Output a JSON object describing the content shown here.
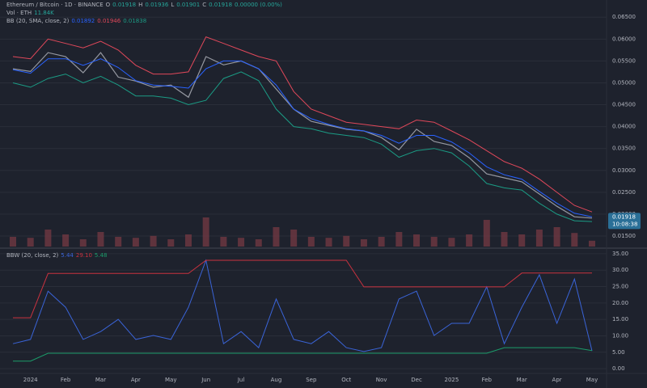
{
  "chart_data": [
    {
      "type": "line",
      "symbol": [
        "Ethereum / Bitcoin · 1D · BINANCE",
        "O",
        "0.01918",
        "H",
        "0.01936",
        "L",
        "0.01901",
        "C",
        "0.01918",
        "0.00000 (0.00%)"
      ],
      "volume_label": "Vol · ETH",
      "volume_last": "11.84K",
      "indicator_label": "BB (20, SMA, close, 2)",
      "indicator_values": [
        "0.01892",
        "0.01946",
        "0.01838"
      ],
      "categories": [
        null,
        "2024",
        null,
        "Feb",
        null,
        "Mar",
        null,
        "Apr",
        null,
        "May",
        null,
        "Jun",
        null,
        "Jul",
        null,
        "Aug",
        null,
        "Sep",
        null,
        "Oct",
        null,
        "Nov",
        null,
        "Dec",
        null,
        "2025",
        null,
        "Feb",
        null,
        "Mar",
        null,
        "Apr",
        null,
        "May"
      ],
      "series": [
        {
          "color": "#9598a1",
          "values": [
            0.0532,
            0.0526,
            0.0569,
            0.056,
            0.0523,
            0.0569,
            0.0513,
            0.0504,
            0.049,
            0.0495,
            0.0467,
            0.056,
            0.0541,
            0.055,
            0.0532,
            0.0486,
            0.044,
            0.0412,
            0.0403,
            0.0394,
            0.039,
            0.0375,
            0.0347,
            0.0394,
            0.0366,
            0.0357,
            0.0329,
            0.0292,
            0.0283,
            0.0274,
            0.0246,
            0.0218,
            0.0194,
            0.0191
          ]
        },
        {
          "color": "#2962ff",
          "values": [
            0.053,
            0.0522,
            0.0555,
            0.0555,
            0.054,
            0.0555,
            0.0535,
            0.0505,
            0.0495,
            0.0492,
            0.0488,
            0.0532,
            0.055,
            0.055,
            0.0532,
            0.0495,
            0.044,
            0.0418,
            0.0405,
            0.0395,
            0.039,
            0.038,
            0.0362,
            0.038,
            0.038,
            0.0365,
            0.034,
            0.0308,
            0.029,
            0.028,
            0.0252,
            0.0225,
            0.0202,
            0.0194
          ]
        },
        {
          "color": "#e0485a",
          "values": [
            0.056,
            0.0555,
            0.06,
            0.059,
            0.058,
            0.0595,
            0.0575,
            0.054,
            0.052,
            0.052,
            0.0525,
            0.0605,
            0.059,
            0.0575,
            0.056,
            0.055,
            0.048,
            0.044,
            0.0425,
            0.041,
            0.0405,
            0.04,
            0.0395,
            0.0415,
            0.041,
            0.039,
            0.037,
            0.0345,
            0.032,
            0.0305,
            0.028,
            0.025,
            0.022,
            0.0205
          ]
        },
        {
          "color": "#1b9c85",
          "values": [
            0.05,
            0.049,
            0.051,
            0.052,
            0.05,
            0.0515,
            0.0495,
            0.047,
            0.047,
            0.0465,
            0.045,
            0.046,
            0.051,
            0.0525,
            0.0505,
            0.044,
            0.04,
            0.0395,
            0.0385,
            0.038,
            0.0375,
            0.036,
            0.033,
            0.0345,
            0.035,
            0.034,
            0.031,
            0.027,
            0.026,
            0.0255,
            0.0225,
            0.02,
            0.0185,
            0.0183
          ]
        }
      ],
      "volume": {
        "color": "#7a3a45",
        "ylim": [
          0,
          100
        ],
        "values": [
          20,
          18,
          35,
          25,
          15,
          30,
          20,
          18,
          22,
          15,
          25,
          60,
          20,
          18,
          15,
          40,
          35,
          20,
          18,
          22,
          15,
          20,
          30,
          25,
          20,
          18,
          25,
          55,
          30,
          25,
          35,
          40,
          28,
          12
        ]
      },
      "ylim": [
        0.0126,
        0.068
      ],
      "yticks": [
        {
          "value": 0.065,
          "label": "0.06500"
        },
        {
          "value": 0.06,
          "label": "0.06000"
        },
        {
          "value": 0.055,
          "label": "0.05500"
        },
        {
          "value": 0.05,
          "label": "0.05000"
        },
        {
          "value": 0.045,
          "label": "0.04500"
        },
        {
          "value": 0.04,
          "label": "0.04000"
        },
        {
          "value": 0.035,
          "label": "0.03500"
        },
        {
          "value": 0.03,
          "label": "0.03000"
        },
        {
          "value": 0.025,
          "label": "0.02500"
        },
        {
          "value": 0.02,
          "label": "0.02000"
        },
        {
          "value": 0.015,
          "label": "0.01500"
        }
      ],
      "last_price": {
        "value": 0.01918,
        "label": "0.01918"
      },
      "countdown": "10:08:38"
    },
    {
      "type": "line",
      "title": "BBW (20, close, 2)",
      "legend_values": [
        "5.44",
        "29.10",
        "5.48"
      ],
      "series": [
        {
          "color": "#3a64d8",
          "values": [
            7.6,
            8.9,
            23.6,
            18.7,
            8.9,
            11.3,
            15.0,
            8.9,
            10.1,
            8.9,
            18.7,
            33.0,
            7.6,
            11.3,
            6.4,
            21.2,
            8.9,
            7.6,
            11.3,
            6.4,
            5.2,
            6.4,
            21.2,
            23.6,
            10.1,
            13.8,
            13.8,
            24.9,
            7.6,
            18.7,
            28.6,
            13.8,
            27.3,
            5.4
          ]
        },
        {
          "color": "#c9323f",
          "values": [
            15.5,
            15.5,
            29,
            29,
            29,
            29,
            29,
            29,
            29,
            29,
            29,
            33,
            33,
            33,
            33,
            33,
            33,
            33,
            33,
            33,
            24.9,
            24.9,
            24.9,
            24.9,
            24.9,
            24.9,
            24.9,
            24.9,
            24.9,
            29.1,
            29.1,
            29.1,
            29.1,
            29.1
          ]
        },
        {
          "color": "#1b9c6a",
          "values": [
            2.3,
            2.3,
            4.7,
            4.7,
            4.7,
            4.7,
            4.7,
            4.7,
            4.7,
            4.7,
            4.7,
            4.7,
            4.7,
            4.7,
            4.7,
            4.7,
            4.7,
            4.7,
            4.7,
            4.7,
            4.7,
            4.7,
            4.7,
            4.7,
            4.7,
            4.7,
            4.7,
            4.7,
            6.4,
            6.4,
            6.4,
            6.4,
            6.4,
            5.5
          ]
        }
      ],
      "ylim": [
        -2.2,
        36.2
      ],
      "yticks": [
        {
          "value": 35,
          "label": "35.00"
        },
        {
          "value": 30,
          "label": "30.00"
        },
        {
          "value": 25,
          "label": "25.00"
        },
        {
          "value": 20,
          "label": "20.00"
        },
        {
          "value": 15,
          "label": "15.00"
        },
        {
          "value": 10,
          "label": "10.00"
        },
        {
          "value": 5,
          "label": "5.00"
        },
        {
          "value": 0,
          "label": "0.00"
        }
      ]
    }
  ]
}
